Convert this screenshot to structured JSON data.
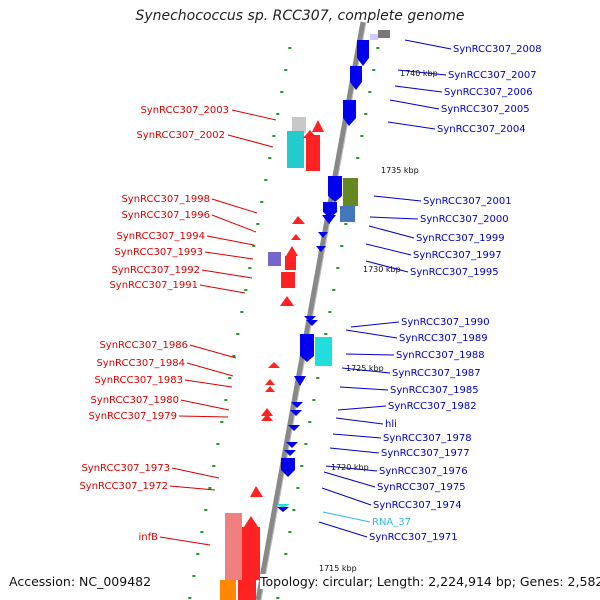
{
  "title": "Synechococcus sp. RCC307, complete genome",
  "footer": {
    "accession": "Accession: NC_009482",
    "summary": "Topology: circular; Length: 2,224,914 bp; Genes: 2,582"
  },
  "colors": {
    "forward_strand": "#ff0000",
    "reverse_strand": "#0000ff",
    "rna": "#33ccdd",
    "backbone": "#888888",
    "tick": "#229922"
  },
  "scale_labels": [
    "1740 kbp",
    "1735 kbp",
    "1730 kbp",
    "1725 kbp",
    "1720 kbp",
    "1715 kbp"
  ],
  "left_labels": [
    "SynRCC307_2003",
    "SynRCC307_2002",
    "SynRCC307_1998",
    "SynRCC307_1996",
    "SynRCC307_1994",
    "SynRCC307_1993",
    "SynRCC307_1992",
    "SynRCC307_1991",
    "SynRCC307_1986",
    "SynRCC307_1984",
    "SynRCC307_1983",
    "SynRCC307_1980",
    "SynRCC307_1979",
    "SynRCC307_1973",
    "SynRCC307_1972",
    "infB"
  ],
  "right_labels": [
    "SynRCC307_2008",
    "SynRCC307_2007",
    "SynRCC307_2006",
    "SynRCC307_2005",
    "SynRCC307_2004",
    "SynRCC307_2001",
    "SynRCC307_2000",
    "SynRCC307_1999",
    "SynRCC307_1997",
    "SynRCC307_1995",
    "SynRCC307_1990",
    "SynRCC307_1989",
    "SynRCC307_1988",
    "SynRCC307_1987",
    "SynRCC307_1985",
    "SynRCC307_1982",
    "hli",
    "SynRCC307_1978",
    "SynRCC307_1977",
    "SynRCC307_1976",
    "SynRCC307_1975",
    "SynRCC307_1974",
    "RNA_37",
    "SynRCC307_1971"
  ]
}
